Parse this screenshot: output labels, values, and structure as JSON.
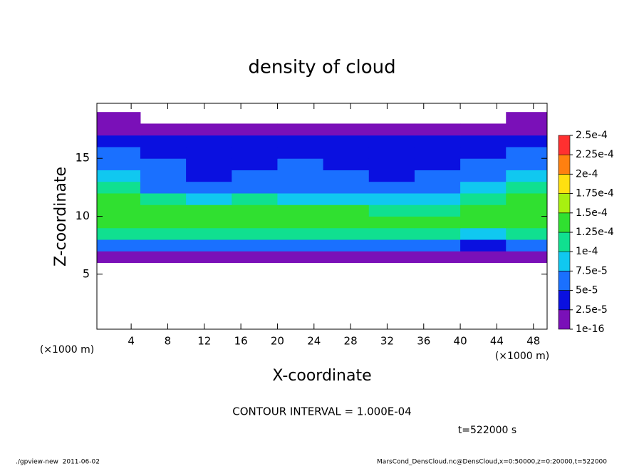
{
  "chart_data": {
    "type": "contourf",
    "title": "density of cloud",
    "xlabel": "X-coordinate",
    "ylabel": "Z-coordinate",
    "x_unit": "(×1000 m)",
    "y_unit": "(×1000 m)",
    "x": [
      2.5,
      7.5,
      12.5,
      17.5,
      22.5,
      27.5,
      32.5,
      37.5,
      42.5,
      47.5
    ],
    "z": [
      6.5,
      7.5,
      8.5,
      9.5,
      10.5,
      11.5,
      12.5,
      13.5,
      14.5,
      15.5,
      16.5,
      17.5,
      18.5
    ],
    "values": [
      [
        1e-05,
        1e-05,
        1e-05,
        1e-05,
        1e-05,
        1e-05,
        1e-05,
        1e-05,
        1e-05,
        1e-05
      ],
      [
        6e-05,
        5e-05,
        6e-05,
        6e-05,
        5e-05,
        6e-05,
        5e-05,
        5e-05,
        4e-05,
        6e-05
      ],
      [
        0.00011,
        0.00011,
        0.00011,
        0.00011,
        0.00011,
        0.00011,
        0.0001,
        0.0001,
        9e-05,
        0.00011
      ],
      [
        0.00014,
        0.00014,
        0.000135,
        0.00014,
        0.000135,
        0.00013,
        0.00013,
        0.00013,
        0.00013,
        0.00014
      ],
      [
        0.00014,
        0.00013,
        0.00013,
        0.00013,
        0.00013,
        0.00013,
        0.00012,
        0.00012,
        0.00013,
        0.00014
      ],
      [
        0.00013,
        0.0001,
        9e-05,
        0.0001,
        9e-05,
        8e-05,
        8e-05,
        9e-05,
        0.00011,
        0.00013
      ],
      [
        0.00011,
        6e-05,
        5e-05,
        6e-05,
        6e-05,
        5e-05,
        5e-05,
        6e-05,
        9e-05,
        0.00011
      ],
      [
        8e-05,
        5e-05,
        4e-05,
        5e-05,
        5e-05,
        5e-05,
        4e-05,
        5e-05,
        7e-05,
        8e-05
      ],
      [
        6e-05,
        5e-05,
        4e-05,
        4e-05,
        5e-05,
        4e-05,
        4e-05,
        4e-05,
        5e-05,
        6e-05
      ],
      [
        5e-05,
        4e-05,
        4e-05,
        4e-05,
        4e-05,
        4e-05,
        4e-05,
        4e-05,
        4e-05,
        5e-05
      ],
      [
        3e-05,
        3e-05,
        3e-05,
        3e-05,
        3e-05,
        3e-05,
        3e-05,
        3e-05,
        3e-05,
        3e-05
      ],
      [
        1e-05,
        1e-05,
        1e-05,
        1e-05,
        1e-05,
        1e-05,
        1e-05,
        1e-05,
        1e-05,
        1e-05
      ],
      [
        1e-05,
        0,
        0,
        0,
        0,
        0,
        0,
        0,
        0,
        1e-05
      ]
    ],
    "xlim": [
      0.25,
      49.5
    ],
    "ylim": [
      0.25,
      19.75
    ],
    "xticks": [
      4,
      8,
      12,
      16,
      20,
      24,
      28,
      32,
      36,
      40,
      44,
      48
    ],
    "yticks": [
      5,
      10,
      15
    ],
    "colorbar": {
      "ticks": [
        {
          "value": 1e-16,
          "label": "1e-16"
        },
        {
          "value": 2.5e-05,
          "label": "2.5e-5"
        },
        {
          "value": 5e-05,
          "label": "5e-5"
        },
        {
          "value": 7.5e-05,
          "label": "7.5e-5"
        },
        {
          "value": 0.0001,
          "label": "1e-4"
        },
        {
          "value": 0.000125,
          "label": "1.25e-4"
        },
        {
          "value": 0.00015,
          "label": "1.5e-4"
        },
        {
          "value": 0.000175,
          "label": "1.75e-4"
        },
        {
          "value": 0.0002,
          "label": "2e-4"
        },
        {
          "value": 0.000225,
          "label": "2.25e-4"
        },
        {
          "value": 0.00025,
          "label": "2.5e-4"
        }
      ],
      "colors": [
        "#7a10b8",
        "#0a10e0",
        "#1a70ff",
        "#10c8f0",
        "#10e090",
        "#30e030",
        "#a8f010",
        "#ffe010",
        "#ff8010",
        "#ff3030"
      ]
    },
    "contour_note": "CONTOUR INTERVAL = 1.000E-04",
    "time_note": "t=522000 s",
    "footer_left": "./gpview-new  2011-06-02",
    "footer_right": "MarsCond_DensCloud.nc@DensCloud,x=0:50000,z=0:20000,t=522000"
  }
}
